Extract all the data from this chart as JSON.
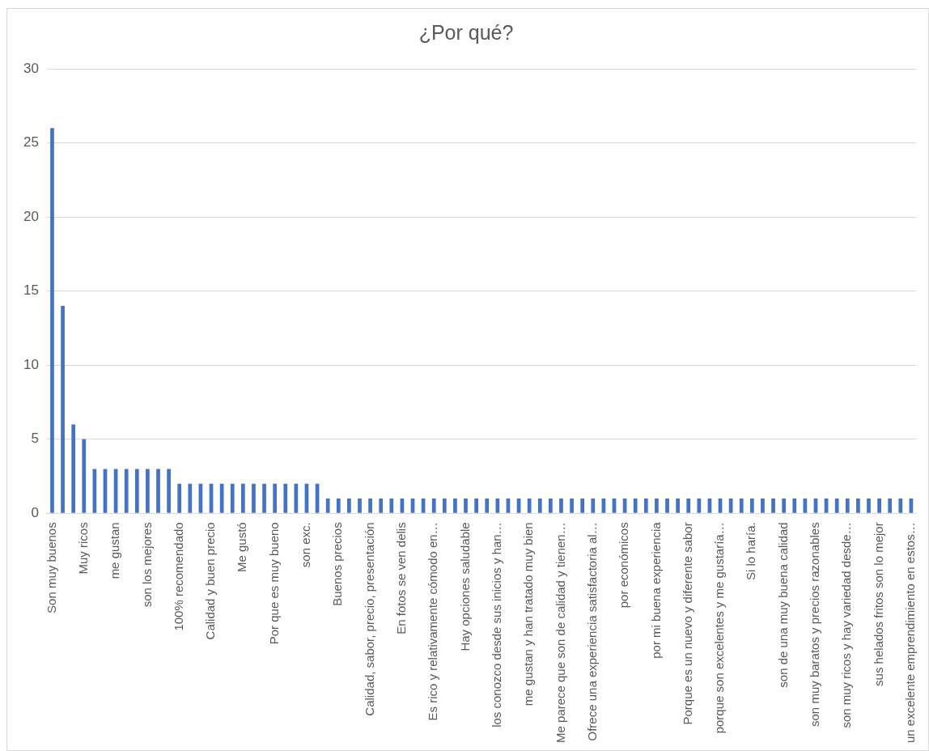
{
  "chart_data": {
    "type": "bar",
    "title": "¿Por qué?",
    "categories": [
      "Son muy buenos",
      null,
      null,
      "Muy ricos",
      null,
      null,
      "me gustan",
      null,
      null,
      "son los mejores",
      null,
      null,
      "100% recomendado",
      null,
      null,
      "Calidad y buen precio",
      null,
      null,
      "Me gustó",
      null,
      null,
      "Por que es muy bueno",
      null,
      null,
      "son exc.",
      null,
      null,
      "Buenos precios",
      null,
      null,
      "Calidad, sabor, precio, presentación",
      null,
      null,
      "En fotos se ven delis",
      null,
      null,
      "Es rico y relativamente cómodo en…",
      null,
      null,
      "Hay opciones saludable",
      null,
      null,
      "los conozco desde sus inicios y han…",
      null,
      null,
      "me gustan y han tratado muy bien",
      null,
      null,
      "Me parece que son de calidad y tienen…",
      null,
      null,
      "Ofrece una experiencia satisfactoria al…",
      null,
      null,
      "por económicos",
      null,
      null,
      "por mi buena experiencia",
      null,
      null,
      "Porque es un nuevo y diferente sabor",
      null,
      null,
      "porque son excelentes y me gustaría…",
      null,
      null,
      "Si lo haría.",
      null,
      null,
      "son de una muy buena calidad",
      null,
      null,
      "son muy baratos y precios razonables",
      null,
      null,
      "son muy ricos y hay variedad desde…",
      null,
      null,
      "sus helados fritos son lo mejor",
      null,
      null,
      "un excelente emprendimiento en estos…"
    ],
    "values": [
      26,
      14,
      6,
      5,
      3,
      3,
      3,
      3,
      3,
      3,
      3,
      3,
      2,
      2,
      2,
      2,
      2,
      2,
      2,
      2,
      2,
      2,
      2,
      2,
      2,
      2,
      1,
      1,
      1,
      1,
      1,
      1,
      1,
      1,
      1,
      1,
      1,
      1,
      1,
      1,
      1,
      1,
      1,
      1,
      1,
      1,
      1,
      1,
      1,
      1,
      1,
      1,
      1,
      1,
      1,
      1,
      1,
      1,
      1,
      1,
      1,
      1,
      1,
      1,
      1,
      1,
      1,
      1,
      1,
      1,
      1,
      1,
      1,
      1,
      1,
      1,
      1,
      1,
      1,
      1,
      1,
      1
    ],
    "color": "#4472c4",
    "ylim": [
      0,
      30
    ],
    "yticks": [
      0,
      5,
      10,
      15,
      20,
      25,
      30
    ],
    "grid": "y"
  }
}
